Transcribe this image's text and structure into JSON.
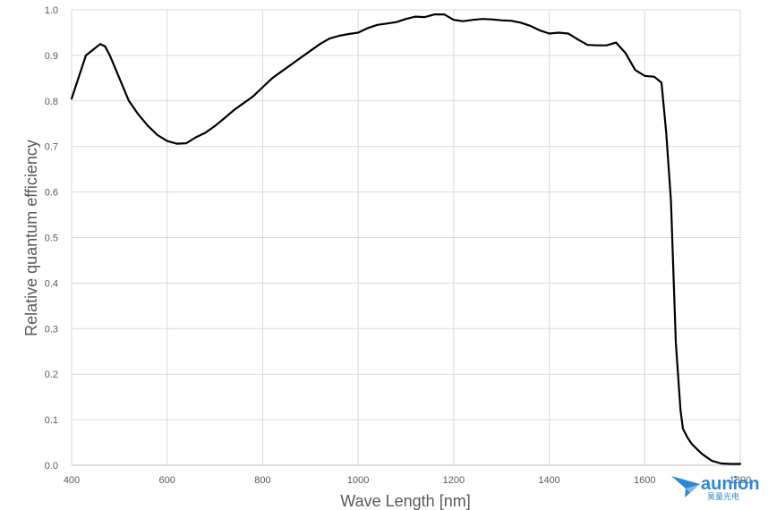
{
  "chart_data": {
    "type": "line",
    "title": "",
    "xlabel": "Wave Length [nm]",
    "ylabel": "Relative quantum efficiency",
    "xlim": [
      400,
      1800
    ],
    "ylim": [
      0,
      1.0
    ],
    "x_ticks": [
      400,
      600,
      800,
      1000,
      1200,
      1400,
      1600,
      1800
    ],
    "y_ticks": [
      0.0,
      0.1,
      0.2,
      0.3,
      0.4,
      0.5,
      0.6,
      0.7,
      0.8,
      0.9,
      1.0
    ],
    "x_tick_labels": [
      "400",
      "600",
      "800",
      "1000",
      "1200",
      "1400",
      "1600",
      "1800"
    ],
    "y_tick_labels": [
      "0.0",
      "0.1",
      "0.2",
      "0.3",
      "0.4",
      "0.5",
      "0.6",
      "0.7",
      "0.8",
      "0.9",
      "1.0"
    ],
    "grid": true,
    "series": [
      {
        "color": "#000000",
        "x": [
          400,
          430,
          460,
          470,
          480,
          500,
          520,
          540,
          560,
          580,
          600,
          620,
          640,
          660,
          680,
          700,
          720,
          740,
          760,
          780,
          800,
          820,
          840,
          860,
          880,
          900,
          920,
          940,
          960,
          980,
          1000,
          1020,
          1040,
          1060,
          1080,
          1100,
          1120,
          1140,
          1160,
          1180,
          1200,
          1220,
          1240,
          1260,
          1280,
          1300,
          1320,
          1340,
          1360,
          1380,
          1400,
          1420,
          1440,
          1460,
          1480,
          1500,
          1520,
          1540,
          1560,
          1580,
          1600,
          1620,
          1635,
          1645,
          1655,
          1665,
          1675,
          1680,
          1690,
          1700,
          1720,
          1740,
          1760,
          1780,
          1800
        ],
        "y": [
          0.805,
          0.9,
          0.925,
          0.92,
          0.9,
          0.85,
          0.8,
          0.77,
          0.745,
          0.725,
          0.712,
          0.706,
          0.707,
          0.72,
          0.73,
          0.745,
          0.762,
          0.78,
          0.795,
          0.81,
          0.83,
          0.85,
          0.865,
          0.88,
          0.895,
          0.91,
          0.925,
          0.937,
          0.943,
          0.947,
          0.95,
          0.96,
          0.967,
          0.97,
          0.973,
          0.98,
          0.985,
          0.984,
          0.99,
          0.99,
          0.978,
          0.975,
          0.978,
          0.98,
          0.979,
          0.977,
          0.976,
          0.972,
          0.965,
          0.955,
          0.948,
          0.95,
          0.948,
          0.935,
          0.923,
          0.922,
          0.922,
          0.928,
          0.905,
          0.868,
          0.855,
          0.853,
          0.84,
          0.73,
          0.58,
          0.27,
          0.12,
          0.08,
          0.06,
          0.045,
          0.025,
          0.01,
          0.004,
          0.003,
          0.003
        ]
      }
    ]
  },
  "brand": {
    "name": "aunion",
    "subtitle": "昊量光电"
  }
}
